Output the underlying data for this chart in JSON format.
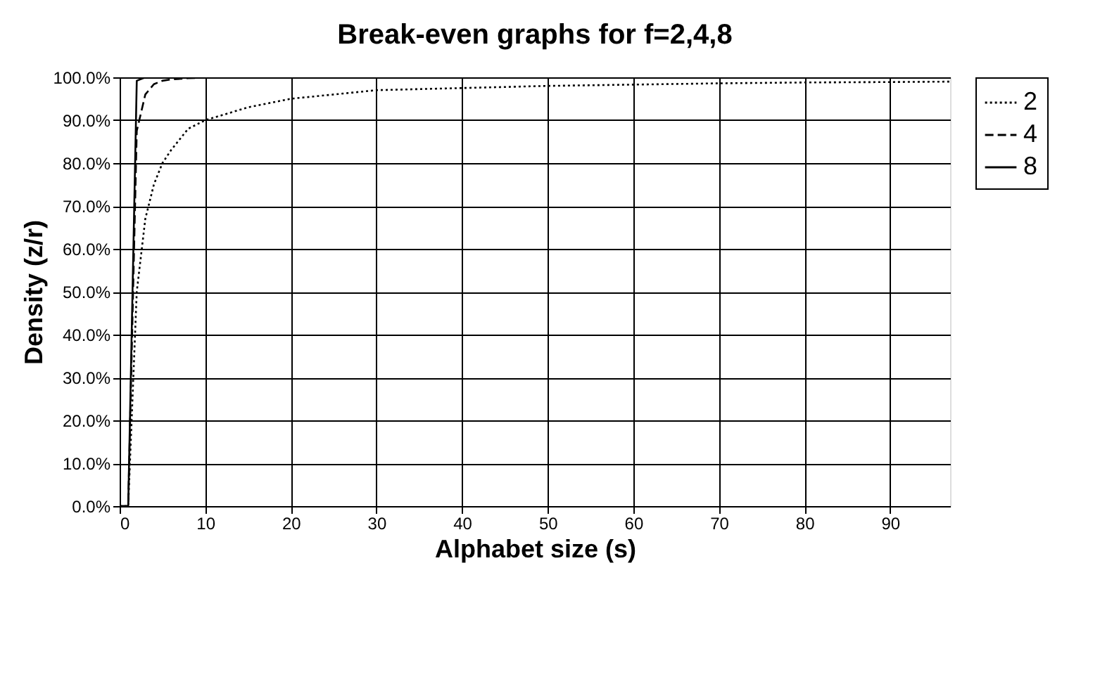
{
  "chart_data": {
    "type": "line",
    "title": "Break-even graphs for f=2,4,8",
    "xlabel": "Alphabet size (s)",
    "ylabel": "Density (z/r)",
    "xlim": [
      0,
      97
    ],
    "xticks": [
      0,
      10,
      20,
      30,
      40,
      50,
      60,
      70,
      80,
      90
    ],
    "ylim": [
      0,
      100
    ],
    "yticks": [
      {
        "value": 0,
        "label": "0.0%"
      },
      {
        "value": 10,
        "label": "10.0%"
      },
      {
        "value": 20,
        "label": "20.0%"
      },
      {
        "value": 30,
        "label": "30.0%"
      },
      {
        "value": 40,
        "label": "40.0%"
      },
      {
        "value": 50,
        "label": "50.0%"
      },
      {
        "value": 60,
        "label": "60.0%"
      },
      {
        "value": 70,
        "label": "70.0%"
      },
      {
        "value": 80,
        "label": "80.0%"
      },
      {
        "value": 90,
        "label": "90.0%"
      },
      {
        "value": 100,
        "label": "100.0%"
      }
    ],
    "grid": true,
    "legend": "right",
    "marker": "none",
    "series": [
      {
        "name": "2",
        "color": "#000000",
        "line_style": "dotted",
        "x": [
          0,
          1,
          2,
          3,
          4,
          5,
          6,
          8,
          10,
          15,
          20,
          30,
          40,
          50,
          60,
          70,
          80,
          90,
          97
        ],
        "values": [
          0,
          0,
          50,
          67,
          75,
          80,
          83,
          88,
          90,
          93,
          95,
          97,
          97.5,
          98,
          98.3,
          98.6,
          98.8,
          98.9,
          99
        ]
      },
      {
        "name": "4",
        "color": "#000000",
        "line_style": "dashed",
        "x": [
          0,
          1,
          2,
          3,
          4,
          5,
          6,
          8,
          10,
          20,
          97
        ],
        "values": [
          0,
          0,
          87.5,
          96,
          98.4,
          99.2,
          99.5,
          99.8,
          99.9,
          100,
          100
        ]
      },
      {
        "name": "8",
        "color": "#000000",
        "line_style": "solid",
        "x": [
          0,
          1,
          2,
          3,
          4,
          97
        ],
        "values": [
          0,
          0,
          99.2,
          100,
          100,
          100
        ]
      }
    ]
  }
}
